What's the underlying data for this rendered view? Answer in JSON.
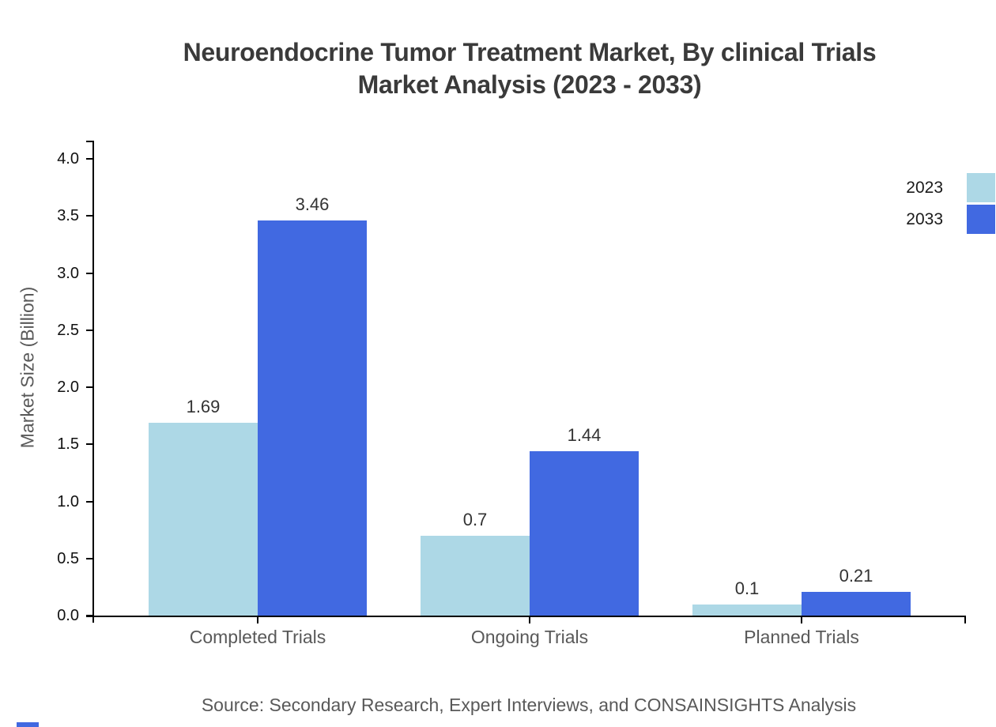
{
  "title": {
    "line1": "Neuroendocrine Tumor Treatment Market, By clinical Trials",
    "line2": "Market Analysis (2023 - 2033)"
  },
  "source": "Source: Secondary Research, Expert Interviews, and CONSAINSIGHTS Analysis",
  "chart_data": {
    "type": "bar",
    "title": "Neuroendocrine Tumor Treatment Market, By clinical Trials Market Analysis (2023 - 2033)",
    "categories": [
      "Completed Trials",
      "Ongoing Trials",
      "Planned Trials"
    ],
    "series": [
      {
        "name": "2023",
        "color": "#ADD8E6",
        "values": [
          1.69,
          0.7,
          0.1
        ]
      },
      {
        "name": "2033",
        "color": "#4169E1",
        "values": [
          3.46,
          1.44,
          0.21
        ]
      }
    ],
    "xlabel": "",
    "ylabel": "Market Size (Billion)",
    "ylim": [
      0,
      4.0
    ],
    "ytick_step": 0.5,
    "ytick_labels": [
      "0.0",
      "0.5",
      "1.0",
      "1.5",
      "2.0",
      "2.5",
      "3.0",
      "3.5",
      "4.0"
    ],
    "grid": false,
    "legend_position": "right-top",
    "value_labels": [
      "1.69",
      "3.46",
      "0.7",
      "1.44",
      "0.1",
      "0.21"
    ]
  },
  "colors": {
    "light_blue": "#ADD8E6",
    "royal_blue": "#4169E1",
    "title_text": "#3a3a3a",
    "muted_text": "#595959",
    "axis": "#000000"
  }
}
